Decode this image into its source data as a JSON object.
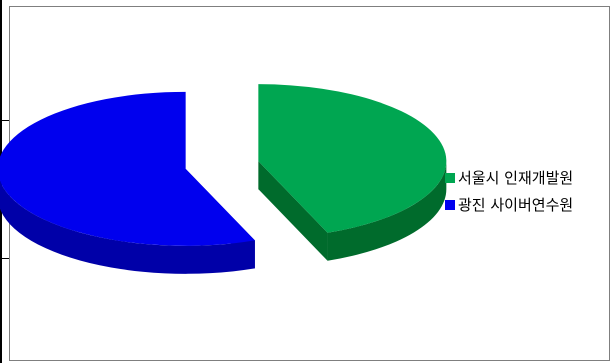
{
  "chart_data": {
    "type": "pie",
    "style": "3d-exploded",
    "legend_position": "right",
    "series": [
      {
        "name": "서울시 인재개발원",
        "value": 44,
        "color": "#00a651",
        "side_color": "#006b2c"
      },
      {
        "name": "광진 사이버연수원",
        "value": 56,
        "color": "#0000ee",
        "side_color": "#0000a8"
      }
    ]
  }
}
